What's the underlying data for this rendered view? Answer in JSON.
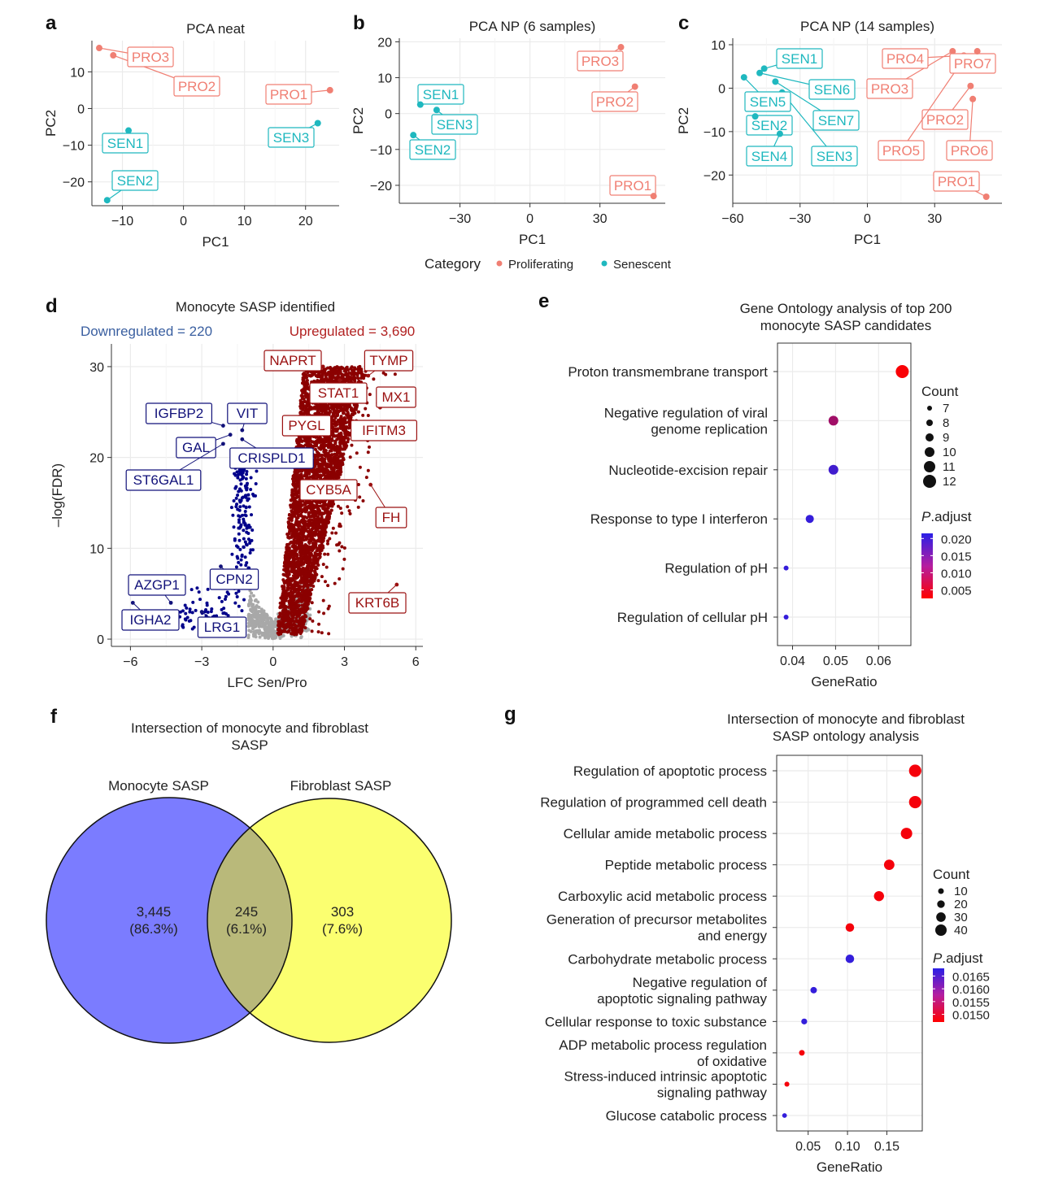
{
  "colors": {
    "proliferating": "#f07f73",
    "senescent": "#1fb8bf",
    "up": "#8b0000",
    "down": "#00008b",
    "ns": "#a8a8a8",
    "padj_high": "#2a1fe6",
    "padj_low": "#ff0000",
    "venn_left": "#7b7cff",
    "venn_right": "#fbff70",
    "venn_overlap": "#b9b97a",
    "grid": "#ebebeb"
  },
  "panels": {
    "a": "a",
    "b": "b",
    "c": "c",
    "d": "d",
    "e": "e",
    "f": "f",
    "g": "g"
  },
  "legend": {
    "title": "Category",
    "items": [
      {
        "label": "Proliferating",
        "color": "#f07f73"
      },
      {
        "label": "Senescent",
        "color": "#1fb8bf"
      }
    ]
  },
  "chart_data": [
    {
      "id": "pca_neat",
      "type": "scatter",
      "title": "PCA neat",
      "xlabel": "PC1",
      "ylabel": "PC2",
      "xlim": [
        -15,
        25.5
      ],
      "ylim": [
        -26.5,
        18.5
      ],
      "xticks": [
        -10,
        0,
        10,
        20
      ],
      "yticks": [
        10,
        0,
        -10,
        -20
      ],
      "points": [
        {
          "label": "PRO1",
          "group": "Proliferating",
          "x": 24,
          "y": 5
        },
        {
          "label": "PRO2",
          "group": "Proliferating",
          "x": -11.5,
          "y": 14.5
        },
        {
          "label": "PRO3",
          "group": "Proliferating",
          "x": -13.8,
          "y": 16.5
        },
        {
          "label": "SEN1",
          "group": "Senescent",
          "x": -9,
          "y": -6
        },
        {
          "label": "SEN2",
          "group": "Senescent",
          "x": -12.5,
          "y": -25
        },
        {
          "label": "SEN3",
          "group": "Senescent",
          "x": 22,
          "y": -4
        }
      ]
    },
    {
      "id": "pca_np6",
      "type": "scatter",
      "title": "PCA NP (6 samples)",
      "xlabel": "PC1",
      "ylabel": "PC2",
      "xlim": [
        -56,
        58
      ],
      "ylim": [
        -25,
        21
      ],
      "xticks": [
        -30,
        0,
        30
      ],
      "yticks": [
        20,
        10,
        0,
        -10,
        -20
      ],
      "points": [
        {
          "label": "PRO1",
          "group": "Proliferating",
          "x": 53,
          "y": -23
        },
        {
          "label": "PRO2",
          "group": "Proliferating",
          "x": 45,
          "y": 7.5
        },
        {
          "label": "PRO3",
          "group": "Proliferating",
          "x": 39,
          "y": 18.5
        },
        {
          "label": "SEN1",
          "group": "Senescent",
          "x": -47,
          "y": 2.5
        },
        {
          "label": "SEN2",
          "group": "Senescent",
          "x": -50,
          "y": -6
        },
        {
          "label": "SEN3",
          "group": "Senescent",
          "x": -40,
          "y": 1
        }
      ]
    },
    {
      "id": "pca_np14",
      "type": "scatter",
      "title": "PCA NP (14 samples)",
      "xlabel": "PC1",
      "ylabel": "PC2",
      "xlim": [
        -60,
        60
      ],
      "ylim": [
        -26.5,
        11.5
      ],
      "xticks": [
        -60,
        -30,
        0,
        30
      ],
      "yticks": [
        10,
        0,
        -10,
        -20
      ],
      "points": [
        {
          "label": "PRO1",
          "group": "Proliferating",
          "x": 53,
          "y": -25
        },
        {
          "label": "PRO2",
          "group": "Proliferating",
          "x": 46,
          "y": 0.5
        },
        {
          "label": "PRO3",
          "group": "Proliferating",
          "x": 38,
          "y": 8.5
        },
        {
          "label": "PRO4",
          "group": "Proliferating",
          "x": 43,
          "y": 7.5
        },
        {
          "label": "PRO5",
          "group": "Proliferating",
          "x": 40,
          "y": 4.5
        },
        {
          "label": "PRO6",
          "group": "Proliferating",
          "x": 47,
          "y": -2.5
        },
        {
          "label": "PRO7",
          "group": "Proliferating",
          "x": 49,
          "y": 8.5
        },
        {
          "label": "SEN1",
          "group": "Senescent",
          "x": -46,
          "y": 4.5
        },
        {
          "label": "SEN2",
          "group": "Senescent",
          "x": -50,
          "y": -6.5
        },
        {
          "label": "SEN3",
          "group": "Senescent",
          "x": -38,
          "y": -1
        },
        {
          "label": "SEN4",
          "group": "Senescent",
          "x": -39,
          "y": -10.5
        },
        {
          "label": "SEN5",
          "group": "Senescent",
          "x": -55,
          "y": 2.5
        },
        {
          "label": "SEN6",
          "group": "Senescent",
          "x": -48,
          "y": 3.5
        },
        {
          "label": "SEN7",
          "group": "Senescent",
          "x": -41,
          "y": 1.5
        }
      ]
    },
    {
      "id": "volcano",
      "type": "scatter",
      "title": "Monocyte SASP identified",
      "downregulated_label": "Downregulated = 220",
      "upregulated_label": "Upregulated = 3,690",
      "downregulated_count": 220,
      "upregulated_count": 3690,
      "xlabel": "LFC Sen/Pro",
      "ylabel": "–log(FDR)",
      "xlim": [
        -6.8,
        6.3
      ],
      "ylim": [
        -0.8,
        32.5
      ],
      "xticks": [
        -6,
        -3,
        0,
        3,
        6
      ],
      "yticks": [
        0,
        10,
        20,
        30
      ],
      "labeled_genes": [
        {
          "gene": "NAPRT",
          "dir": "up",
          "x": 2.1,
          "y": 30
        },
        {
          "gene": "TYMP",
          "dir": "up",
          "x": 4.0,
          "y": 29
        },
        {
          "gene": "STAT1",
          "dir": "up",
          "x": 2.8,
          "y": 28.5
        },
        {
          "gene": "MX1",
          "dir": "up",
          "x": 4.5,
          "y": 25.5
        },
        {
          "gene": "PYGL",
          "dir": "up",
          "x": 2.3,
          "y": 23.5
        },
        {
          "gene": "IFITM3",
          "dir": "up",
          "x": 3.5,
          "y": 24
        },
        {
          "gene": "CYB5A",
          "dir": "up",
          "x": 2.7,
          "y": 16.5
        },
        {
          "gene": "FH",
          "dir": "up",
          "x": 4.1,
          "y": 17
        },
        {
          "gene": "KRT6B",
          "dir": "up",
          "x": 5.2,
          "y": 6
        },
        {
          "gene": "IGFBP2",
          "dir": "down",
          "x": -2.1,
          "y": 23.5
        },
        {
          "gene": "VIT",
          "dir": "down",
          "x": -1.3,
          "y": 23
        },
        {
          "gene": "GAL",
          "dir": "down",
          "x": -1.8,
          "y": 22.5
        },
        {
          "gene": "CRISPLD1",
          "dir": "down",
          "x": -1.3,
          "y": 22
        },
        {
          "gene": "ST6GAL1",
          "dir": "down",
          "x": -2.1,
          "y": 21.5
        },
        {
          "gene": "CPN2",
          "dir": "down",
          "x": -2.2,
          "y": 8
        },
        {
          "gene": "AZGP1",
          "dir": "down",
          "x": -4.3,
          "y": 4
        },
        {
          "gene": "IGHA2",
          "dir": "down",
          "x": -5.9,
          "y": 4
        },
        {
          "gene": "LRG1",
          "dir": "down",
          "x": -3.0,
          "y": 3
        }
      ]
    },
    {
      "id": "go_top200",
      "type": "scatter",
      "title": "Gene Ontology analysis of top 200\nmonocyte SASP candidates",
      "xlabel": "GeneRatio",
      "xlim": [
        0.0365,
        0.0675
      ],
      "xticks": [
        0.04,
        0.05,
        0.06
      ],
      "xticklabels": [
        "0.04",
        "0.05",
        "0.06"
      ],
      "terms": [
        {
          "term": "Proton transmembrane transport",
          "ratio": 0.0655,
          "count": 12,
          "padj": 0.003
        },
        {
          "term": "Negative regulation of viral\ngenome replication",
          "ratio": 0.0495,
          "count": 10,
          "padj": 0.011
        },
        {
          "term": "Nucleotide-excision repair",
          "ratio": 0.0495,
          "count": 10,
          "padj": 0.0195
        },
        {
          "term": "Response to type I interferon",
          "ratio": 0.044,
          "count": 9,
          "padj": 0.0205
        },
        {
          "term": "Regulation of pH",
          "ratio": 0.0385,
          "count": 7,
          "padj": 0.0205
        },
        {
          "term": "Regulation of cellular pH",
          "ratio": 0.0385,
          "count": 7,
          "padj": 0.0205
        }
      ],
      "size_legend": {
        "title": "Count",
        "values": [
          7,
          8,
          9,
          10,
          11,
          12
        ]
      },
      "color_legend": {
        "title_italic": "P",
        "title_rest": ".adjust",
        "labels": [
          "0.020",
          "0.015",
          "0.010",
          "0.005"
        ],
        "values": [
          0.02,
          0.015,
          0.01,
          0.005
        ],
        "range": [
          0.0025,
          0.0215
        ]
      }
    },
    {
      "id": "venn",
      "type": "venn",
      "title": "Intersection of monocyte and fibroblast\nSASP",
      "sets": [
        {
          "name": "Monocyte SASP",
          "only": "3,445",
          "only_pct": "(86.3%)"
        },
        {
          "name": "Fibroblast SASP",
          "only": "303",
          "only_pct": "(7.6%)"
        }
      ],
      "overlap": "245",
      "overlap_pct": "(6.1%)"
    },
    {
      "id": "go_intersection",
      "type": "scatter",
      "title": "Intersection of monocyte and fibroblast\nSASP ontology analysis",
      "xlabel": "GeneRatio",
      "xlim": [
        0.01,
        0.195
      ],
      "xticks": [
        0.05,
        0.1,
        0.15
      ],
      "xticklabels": [
        "0.05",
        "0.10",
        "0.15"
      ],
      "terms": [
        {
          "term": "Regulation of apoptotic process",
          "ratio": 0.186,
          "count": 45,
          "padj": 0.0148
        },
        {
          "term": "Regulation of programmed cell death",
          "ratio": 0.186,
          "count": 45,
          "padj": 0.0148
        },
        {
          "term": "Cellular amide metabolic process",
          "ratio": 0.175,
          "count": 40,
          "padj": 0.0148
        },
        {
          "term": "Peptide metabolic process",
          "ratio": 0.153,
          "count": 35,
          "padj": 0.0148
        },
        {
          "term": "Carboxylic acid metabolic process",
          "ratio": 0.14,
          "count": 33,
          "padj": 0.0148
        },
        {
          "term": "Generation of precursor metabolites\nand energy",
          "ratio": 0.103,
          "count": 25,
          "padj": 0.0148
        },
        {
          "term": "Carbohydrate metabolic process",
          "ratio": 0.103,
          "count": 25,
          "padj": 0.0167
        },
        {
          "term": "Negative regulation of\napoptotic signaling pathway",
          "ratio": 0.057,
          "count": 14,
          "padj": 0.0167
        },
        {
          "term": "Cellular response to toxic substance",
          "ratio": 0.045,
          "count": 11,
          "padj": 0.0167
        },
        {
          "term": "ADP metabolic process regulation\nof oxidative",
          "ratio": 0.042,
          "count": 10,
          "padj": 0.0148
        },
        {
          "term": "Stress-induced intrinsic apoptotic\nsignaling pathway",
          "ratio": 0.023,
          "count": 6,
          "padj": 0.0148
        },
        {
          "term": "Glucose catabolic process",
          "ratio": 0.02,
          "count": 5,
          "padj": 0.0167
        }
      ],
      "size_legend": {
        "title": "Count",
        "values": [
          10,
          20,
          30,
          40
        ]
      },
      "color_legend": {
        "title_italic": "P",
        "title_rest": ".adjust",
        "labels": [
          "0.0165",
          "0.0160",
          "0.0155",
          "0.0150"
        ],
        "values": [
          0.0165,
          0.016,
          0.0155,
          0.015
        ],
        "range": [
          0.0147,
          0.0168
        ]
      }
    }
  ]
}
